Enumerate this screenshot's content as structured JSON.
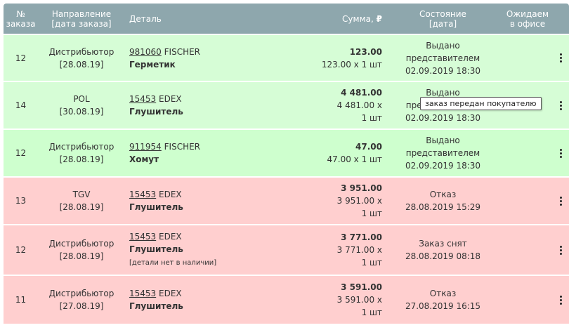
{
  "header": {
    "num_line1": "№",
    "num_line2": "заказа",
    "dir_line1": "Направление",
    "dir_line2": "[дата заказа]",
    "detail": "Деталь",
    "sum": "Сумма,",
    "currency": "₽",
    "state_line1": "Состояние",
    "state_line2": "[дата]",
    "wait_line1": "Ожидаем",
    "wait_line2": "в офисе"
  },
  "rows": [
    {
      "status": "green",
      "num": "12",
      "dir": "Дистрибьютор",
      "date": "[28.08.19]",
      "code": "981060",
      "brand": "FISCHER",
      "name": "Герметик",
      "note": "",
      "total": "123.00",
      "calc1": "123.00 x 1 шт",
      "calc2": "",
      "state1": "Выдано",
      "state2": "представителем",
      "state3": "02.09.2019 18:30"
    },
    {
      "status": "green",
      "num": "14",
      "dir": "POL",
      "date": "[30.08.19]",
      "code": "15453",
      "brand": "EDEX",
      "name": "Глушитель",
      "note": "",
      "total": "4 481.00",
      "calc1": "4 481.00 x",
      "calc2": "1 шт",
      "state1": "Выдано",
      "state2": "представителем",
      "state3": "02.09.2019 18:30"
    },
    {
      "status": "green",
      "num": "12",
      "dir": "Дистрибьютор",
      "date": "[28.08.19]",
      "code": "911954",
      "brand": "FISCHER",
      "name": "Хомут",
      "note": "",
      "total": "47.00",
      "calc1": "47.00 x 1 шт",
      "calc2": "",
      "state1": "Выдано",
      "state2": "представителем",
      "state3": "02.09.2019 18:30"
    },
    {
      "status": "red",
      "num": "13",
      "dir": "TGV",
      "date": "[28.08.19]",
      "code": "15453",
      "brand": "EDEX",
      "name": "Глушитель",
      "note": "",
      "total": "3 951.00",
      "calc1": "3 951.00 x",
      "calc2": "1 шт",
      "state1": "Отказ",
      "state2": "28.08.2019 15:29",
      "state3": ""
    },
    {
      "status": "red",
      "num": "12",
      "dir": "Дистрибьютор",
      "date": "[28.08.19]",
      "code": "15453",
      "brand": "EDEX",
      "name": "Глушитель",
      "note": "[детали нет в наличии]",
      "total": "3 771.00",
      "calc1": "3 771.00 x",
      "calc2": "1 шт",
      "state1": "Заказ снят",
      "state2": "28.08.2019 08:18",
      "state3": ""
    },
    {
      "status": "red",
      "num": "11",
      "dir": "Дистрибьютор",
      "date": "[27.08.19]",
      "code": "15453",
      "brand": "EDEX",
      "name": "Глушитель",
      "note": "",
      "total": "3 591.00",
      "calc1": "3 591.00 x",
      "calc2": "1 шт",
      "state1": "Отказ",
      "state2": "27.08.2019 16:15",
      "state3": ""
    }
  ],
  "tooltip": "заказ передан покупателю",
  "colors": {
    "header": "#8ea7ad",
    "green_row": "#d6fdd6",
    "red_row": "#ffcfcf"
  }
}
